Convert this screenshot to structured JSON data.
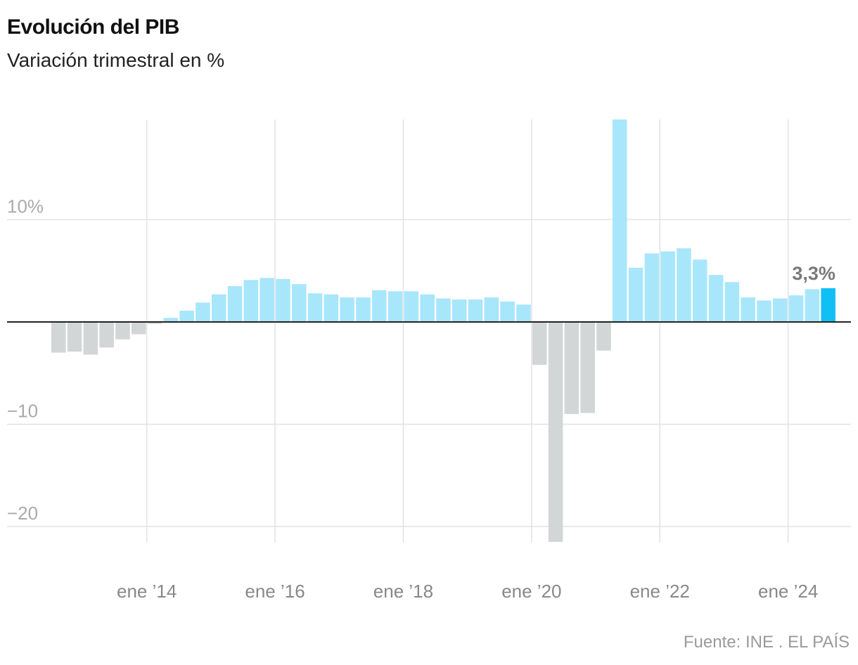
{
  "header": {
    "title": "Evolución del PIB",
    "subtitle": "Variación trimestral en %"
  },
  "footer": {
    "source": "Fuente: INE . EL PAÍS"
  },
  "colors": {
    "positive": "#a8e6fb",
    "negative": "#d3d6d6",
    "highlight": "#10c0f5",
    "grid": "#e2e2e2",
    "zero_line": "#222222"
  },
  "chart_data": {
    "type": "bar",
    "title": "Evolución del PIB",
    "subtitle": "Variación trimestral en %",
    "xlabel": "",
    "ylabel": "",
    "ylim": [
      -21.5,
      19.8
    ],
    "y_ticks": [
      10,
      -10,
      -20
    ],
    "y_tick_labels": [
      "10%",
      "−10",
      "−20"
    ],
    "x_ticks": [
      {
        "index": 6,
        "label": "ene ’14"
      },
      {
        "index": 14,
        "label": "ene ’16"
      },
      {
        "index": 22,
        "label": "ene ’18"
      },
      {
        "index": 30,
        "label": "ene ’20"
      },
      {
        "index": 38,
        "label": "ene ’22"
      },
      {
        "index": 46,
        "label": "ene ’24"
      }
    ],
    "categories": [
      "2012-T3",
      "2012-T4",
      "2013-T1",
      "2013-T2",
      "2013-T3",
      "2013-T4",
      "2014-T1",
      "2014-T2",
      "2014-T3",
      "2014-T4",
      "2015-T1",
      "2015-T2",
      "2015-T3",
      "2015-T4",
      "2016-T1",
      "2016-T2",
      "2016-T3",
      "2016-T4",
      "2017-T1",
      "2017-T2",
      "2017-T3",
      "2017-T4",
      "2018-T1",
      "2018-T2",
      "2018-T3",
      "2018-T4",
      "2019-T1",
      "2019-T2",
      "2019-T3",
      "2019-T4",
      "2020-T1",
      "2020-T2",
      "2020-T3",
      "2020-T4",
      "2021-T1",
      "2021-T2",
      "2021-T3",
      "2021-T4",
      "2022-T1",
      "2022-T2",
      "2022-T3",
      "2022-T4",
      "2023-T1",
      "2023-T2",
      "2023-T3",
      "2023-T4",
      "2024-T1",
      "2024-T2",
      "2024-T3"
    ],
    "values": [
      -3.0,
      -2.9,
      -3.2,
      -2.5,
      -1.7,
      -1.2,
      -0.2,
      0.4,
      1.1,
      1.9,
      2.7,
      3.5,
      4.1,
      4.3,
      4.2,
      3.7,
      2.8,
      2.7,
      2.4,
      2.4,
      3.1,
      3.0,
      3.0,
      2.7,
      2.3,
      2.2,
      2.2,
      2.4,
      2.0,
      1.7,
      -4.2,
      -21.5,
      -9.0,
      -8.9,
      -2.8,
      19.8,
      5.3,
      6.7,
      6.9,
      7.2,
      6.1,
      4.6,
      3.9,
      2.4,
      2.1,
      2.3,
      2.6,
      3.2,
      3.3
    ],
    "highlight_index": 48,
    "highlight_label": "3,3%"
  }
}
